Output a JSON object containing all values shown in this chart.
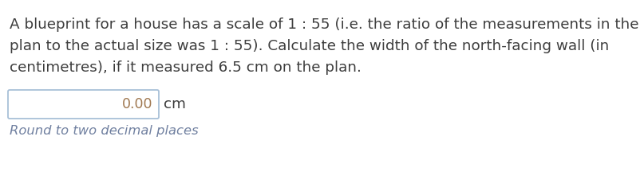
{
  "background_color": "#ffffff",
  "main_text_color": "#3d3d3d",
  "input_value_color": "#a07850",
  "unit_color": "#3d3d3d",
  "hint_color": "#7080a0",
  "box_border_color": "#a8c0d8",
  "box_fill_color": "#ffffff",
  "paragraph_text_line1": "A blueprint for a house has a scale of 1 : 55 (i.e. the ratio of the measurements in the",
  "paragraph_text_line2": "plan to the actual size was 1 : 55). Calculate the width of the north-facing wall (in",
  "paragraph_text_line3": "centimetres), if it measured 6.5 cm on the plan.",
  "input_value": "0.00",
  "unit_label": "cm",
  "hint_text": "Round to two decimal places",
  "paragraph_fontsize": 13.2,
  "input_fontsize": 12.5,
  "unit_fontsize": 13.2,
  "hint_fontsize": 11.8
}
